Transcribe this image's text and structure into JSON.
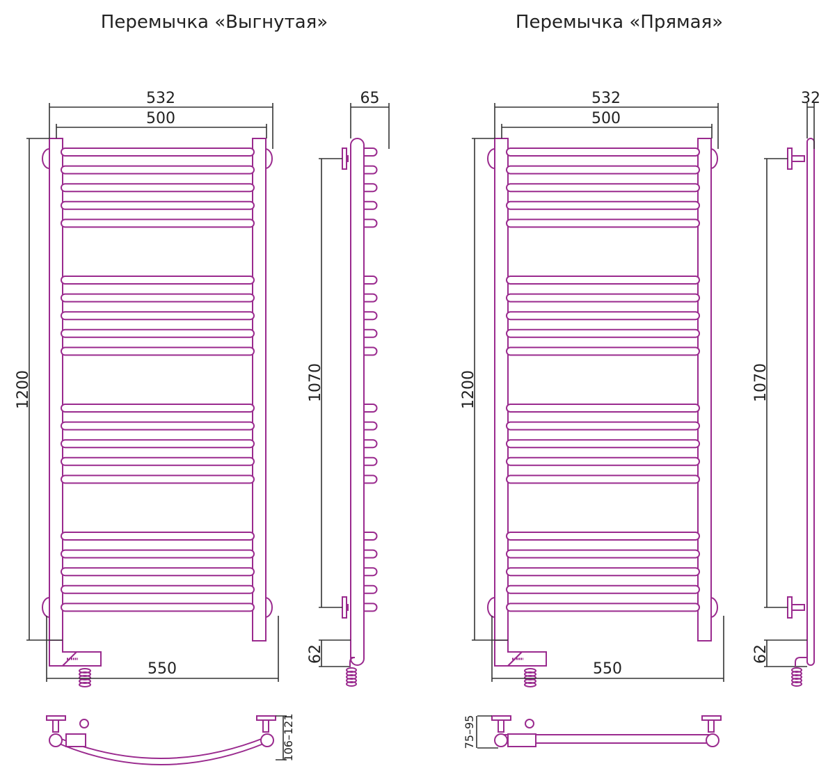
{
  "colors": {
    "outline": "#9a2a8e",
    "dimension": "#333333"
  },
  "left": {
    "title": "Перемычка «Выгнутая»",
    "dim_width_outer": "532",
    "dim_width_axis": "500",
    "dim_height": "1200",
    "dim_depth": "65",
    "dim_axis_height": "1070",
    "dim_bottom_offset": "62",
    "dim_total_width": "550",
    "dim_wall_distance": "106–121"
  },
  "right": {
    "title": "Перемычка «Прямая»",
    "dim_width_outer": "532",
    "dim_width_axis": "500",
    "dim_height": "1200",
    "dim_depth": "32",
    "dim_axis_height": "1070",
    "dim_bottom_offset": "62",
    "dim_total_width": "550",
    "dim_wall_distance": "75–95"
  }
}
